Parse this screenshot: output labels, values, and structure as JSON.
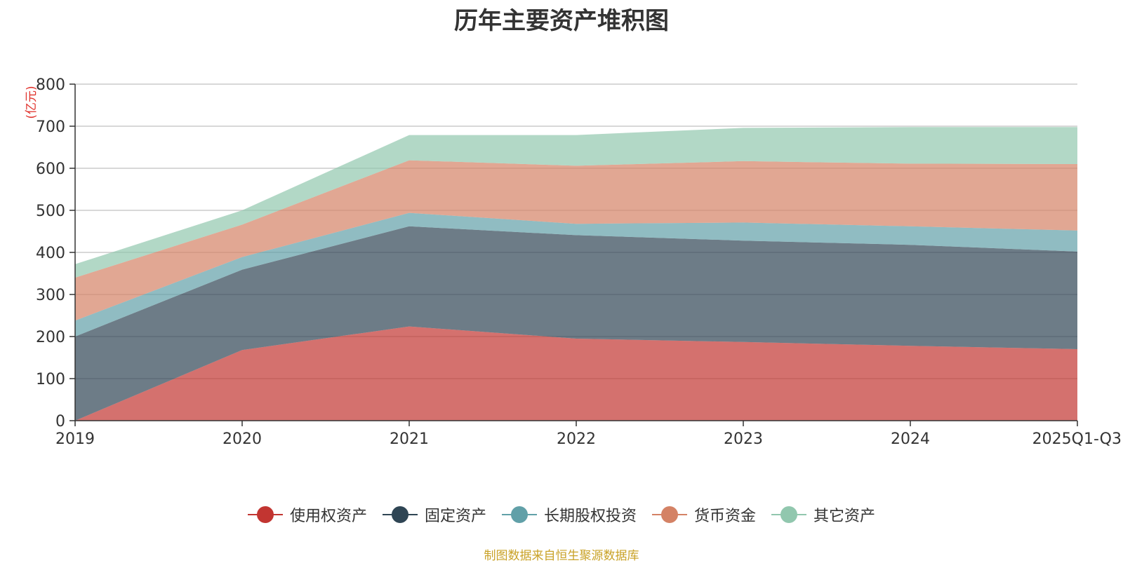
{
  "title": "历年主要资产堆积图",
  "source": "制图数据来自恒生聚源数据库",
  "chart_data": {
    "type": "area",
    "stacked": true,
    "title": "历年主要资产堆积图",
    "yunit": "(亿元)",
    "categories": [
      "2019",
      "2020",
      "2021",
      "2022",
      "2023",
      "2024",
      "2025Q1-Q3"
    ],
    "ylim": [
      0,
      800
    ],
    "yticks": [
      0,
      100,
      200,
      300,
      400,
      500,
      600,
      700,
      800
    ],
    "grid": true,
    "legend_position": "bottom",
    "series": [
      {
        "name": "使用权资产",
        "color": "#c23531",
        "values": [
          0,
          168,
          224,
          195,
          187,
          178,
          170
        ]
      },
      {
        "name": "固定资产",
        "color": "#2f4554",
        "values": [
          200,
          191,
          238,
          246,
          241,
          240,
          232
        ]
      },
      {
        "name": "长期股权投资",
        "color": "#61a0a8",
        "values": [
          38,
          30,
          32,
          27,
          43,
          44,
          50
        ]
      },
      {
        "name": "货币资金",
        "color": "#d48265",
        "values": [
          102,
          77,
          125,
          138,
          146,
          149,
          158
        ]
      },
      {
        "name": "其它资产",
        "color": "#91c7ae",
        "values": [
          32,
          34,
          60,
          73,
          79,
          87,
          88
        ]
      }
    ]
  }
}
